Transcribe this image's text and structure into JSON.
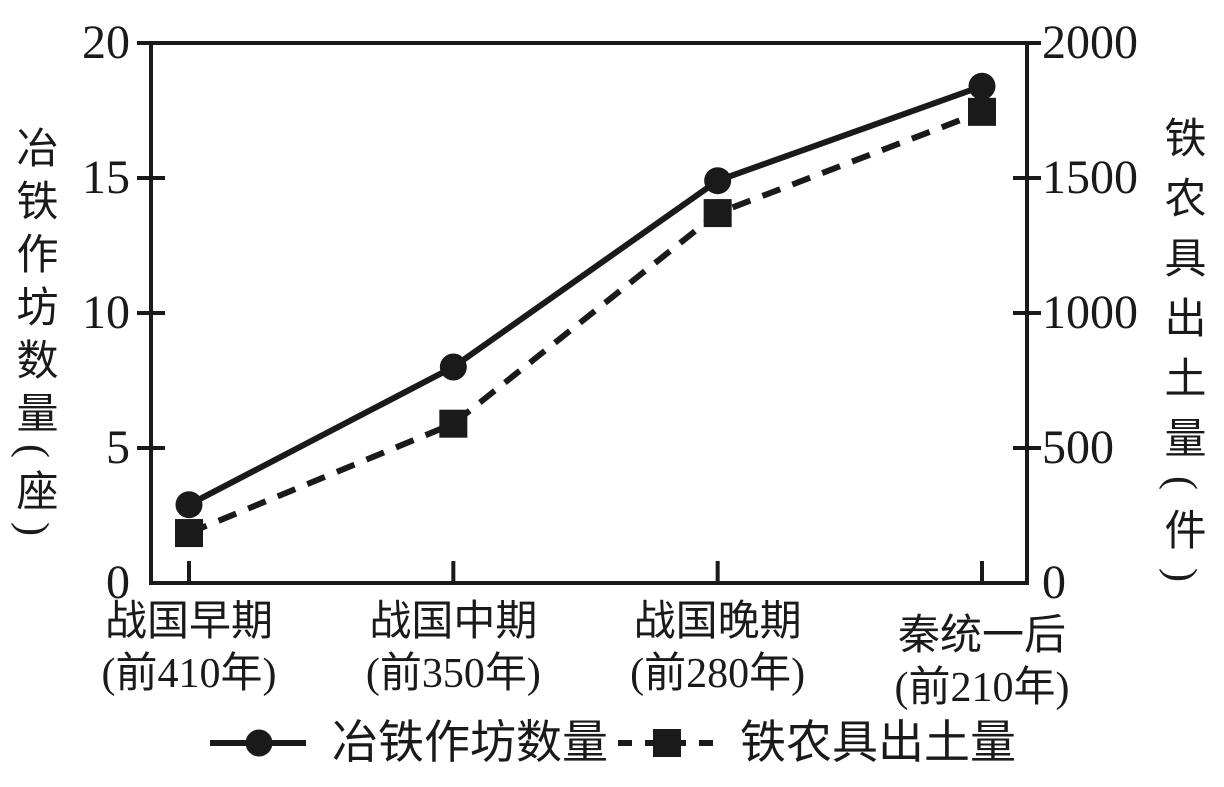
{
  "chart_data": {
    "type": "line",
    "categories": [
      "战国早期",
      "战国中期",
      "战国晚期",
      "秦统一后"
    ],
    "category_sublabels": [
      "(前410年)",
      "(前350年)",
      "(前280年)",
      "(前210年)"
    ],
    "series": [
      {
        "name": "冶铁作坊数量",
        "axis": "left",
        "marker": "circle",
        "line": "solid",
        "values": [
          2.9,
          8,
          14.9,
          18.4
        ]
      },
      {
        "name": "铁农具出土量",
        "axis": "right",
        "marker": "square",
        "line": "dashed",
        "values": [
          185,
          590,
          1370,
          1745
        ]
      }
    ],
    "left_axis": {
      "title": "冶铁作坊数量(座)",
      "range": [
        0,
        20
      ],
      "ticks": [
        0,
        5,
        10,
        15,
        20
      ]
    },
    "right_axis": {
      "title": "铁农具出土量(件)",
      "range": [
        0,
        2000
      ],
      "ticks": [
        0,
        500,
        1000,
        1500,
        2000
      ]
    },
    "legend": {
      "position": "bottom",
      "entries": [
        "冶铁作坊数量",
        "铁农具出土量"
      ]
    },
    "grid": false,
    "colors": {
      "ink": "#1a1a1a",
      "background": "#ffffff"
    }
  }
}
